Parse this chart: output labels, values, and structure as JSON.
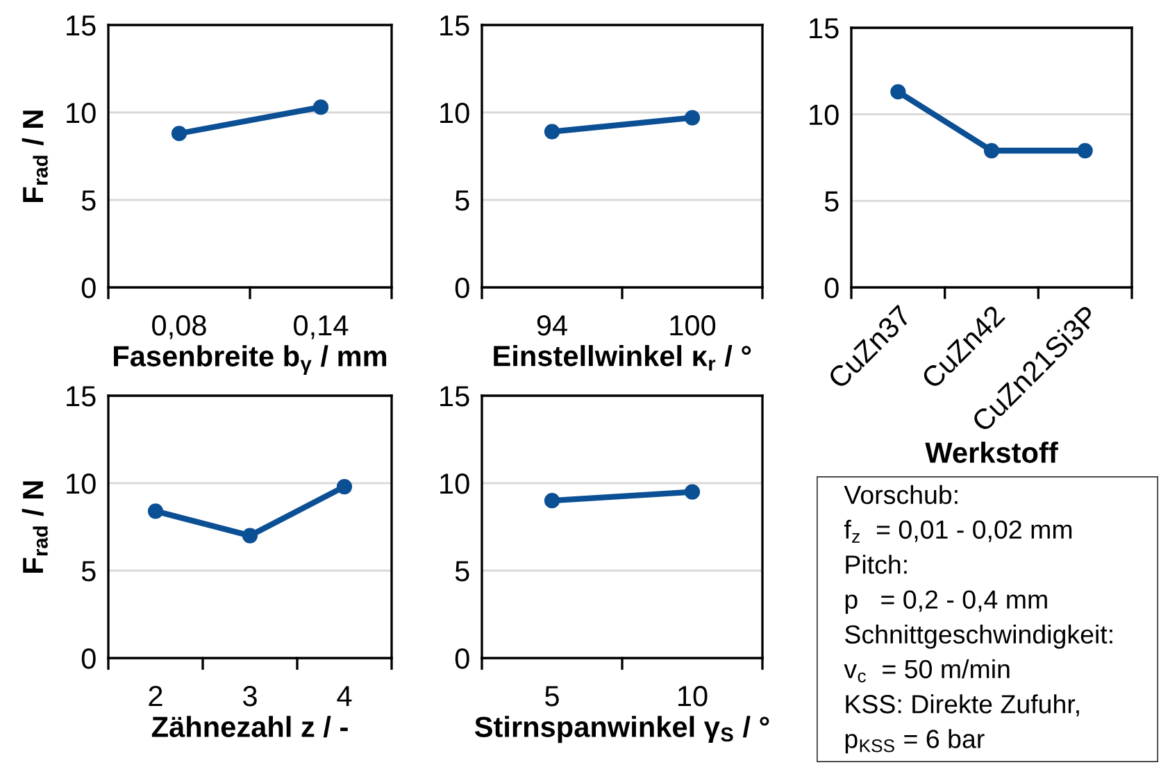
{
  "chart_data": [
    {
      "type": "line",
      "ylabel": "F$_{rad}$ / N",
      "xlabel": "Fasenbreite b$_{γ}$ / mm",
      "categories": [
        "0,08",
        "0,14"
      ],
      "series": [
        {
          "color": "#0b4f94",
          "values": [
            8.8,
            10.3
          ]
        }
      ],
      "ylim": [
        0,
        15
      ],
      "yticks": [
        0,
        5,
        10,
        15
      ],
      "grid": "y",
      "marker": "circle",
      "line_style": "solid"
    },
    {
      "type": "line",
      "xlabel": "Einstellwinkel κ$_{r}$ / °",
      "categories": [
        "94",
        "100"
      ],
      "series": [
        {
          "color": "#0b4f94",
          "values": [
            8.9,
            9.7
          ]
        }
      ],
      "ylim": [
        0,
        15
      ],
      "yticks": [
        0,
        5,
        10,
        15
      ],
      "grid": "y",
      "marker": "circle",
      "line_style": "solid"
    },
    {
      "type": "line",
      "xlabel": "Werkstoff",
      "categories": [
        "CuZn37",
        "CuZn42",
        "CuZn21Si3P"
      ],
      "series": [
        {
          "color": "#0b4f94",
          "values": [
            11.3,
            7.9,
            7.9
          ]
        }
      ],
      "ylim": [
        0,
        15
      ],
      "yticks": [
        0,
        5,
        10,
        15
      ],
      "grid": "y",
      "marker": "circle",
      "line_style": "solid"
    },
    {
      "type": "line",
      "ylabel": "F$_{rad}$ / N",
      "xlabel": "Zähnezahl z / -",
      "categories": [
        "2",
        "3",
        "4"
      ],
      "series": [
        {
          "color": "#0b4f94",
          "values": [
            8.4,
            7.0,
            9.8
          ]
        }
      ],
      "ylim": [
        0,
        15
      ],
      "yticks": [
        0,
        5,
        10,
        15
      ],
      "grid": "y",
      "marker": "circle",
      "line_style": "solid"
    },
    {
      "type": "line",
      "xlabel": "Stirnspanwinkel γ$_{S}$ / °",
      "categories": [
        "5",
        "10"
      ],
      "series": [
        {
          "color": "#0b4f94",
          "values": [
            9.0,
            9.5
          ]
        }
      ],
      "ylim": [
        0,
        15
      ],
      "yticks": [
        0,
        5,
        10,
        15
      ],
      "grid": "y",
      "marker": "circle",
      "line_style": "solid"
    },
    {
      "type": "other",
      "annotations": [
        "Vorschub:",
        "f$_{z}$  = 0,01 - 0,02 mm",
        "Pitch:",
        "p   = 0,2 - 0,4 mm",
        "Schnittgeschwindigkeit:",
        "v$_{c}$  = 50 m/min",
        "KSS: Direkte Zufuhr,",
        "p$_{KSS}$ = 6 bar"
      ]
    }
  ]
}
